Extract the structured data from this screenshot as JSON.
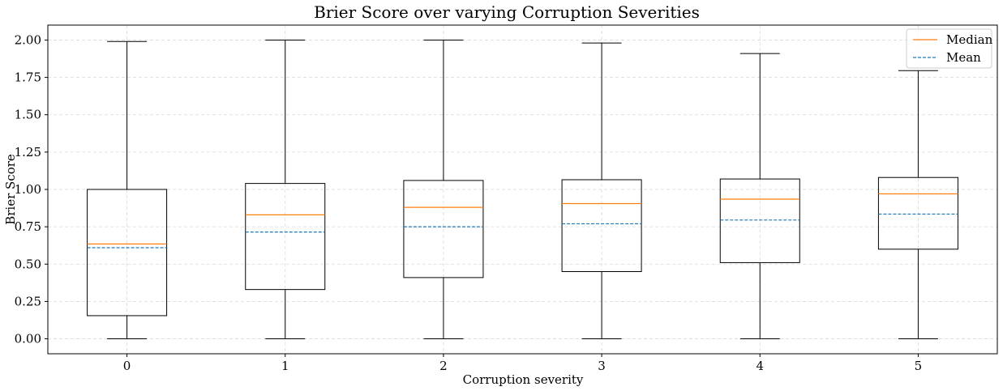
{
  "chart_data": {
    "type": "box",
    "title": "Brier Score over varying Corruption Severities",
    "xlabel": "Corruption severity",
    "ylabel": "Brier Score",
    "ylim": [
      -0.1,
      2.1
    ],
    "yticks": [
      "0.00",
      "0.25",
      "0.50",
      "0.75",
      "1.00",
      "1.25",
      "1.50",
      "1.75",
      "2.00"
    ],
    "ytick_values": [
      0,
      0.25,
      0.5,
      0.75,
      1.0,
      1.25,
      1.5,
      1.75,
      2.0
    ],
    "grid": true,
    "legend_position": "top-right",
    "legend": [
      {
        "label": "Median",
        "color": "#ff7f0e",
        "style": "solid"
      },
      {
        "label": "Mean",
        "color": "#1f77b4",
        "style": "dashed"
      }
    ],
    "categories": [
      "0",
      "1",
      "2",
      "3",
      "4",
      "5"
    ],
    "boxes": [
      {
        "category": "0",
        "whisker_low": 0.0,
        "q1": 0.155,
        "median": 0.635,
        "mean": 0.61,
        "q3": 1.0,
        "whisker_high": 1.99
      },
      {
        "category": "1",
        "whisker_low": 0.0,
        "q1": 0.33,
        "median": 0.83,
        "mean": 0.715,
        "q3": 1.04,
        "whisker_high": 2.0
      },
      {
        "category": "2",
        "whisker_low": 0.0,
        "q1": 0.41,
        "median": 0.88,
        "mean": 0.75,
        "q3": 1.06,
        "whisker_high": 2.0
      },
      {
        "category": "3",
        "whisker_low": 0.0,
        "q1": 0.45,
        "median": 0.905,
        "mean": 0.77,
        "q3": 1.065,
        "whisker_high": 1.98
      },
      {
        "category": "4",
        "whisker_low": 0.0,
        "q1": 0.51,
        "median": 0.935,
        "mean": 0.795,
        "q3": 1.07,
        "whisker_high": 1.91
      },
      {
        "category": "5",
        "whisker_low": 0.0,
        "q1": 0.6,
        "median": 0.97,
        "mean": 0.835,
        "q3": 1.08,
        "whisker_high": 1.795
      }
    ],
    "colors": {
      "box": "#000000",
      "grid": "#d9d9d9",
      "median": "#ff7f0e",
      "mean": "#1f77b4"
    }
  }
}
